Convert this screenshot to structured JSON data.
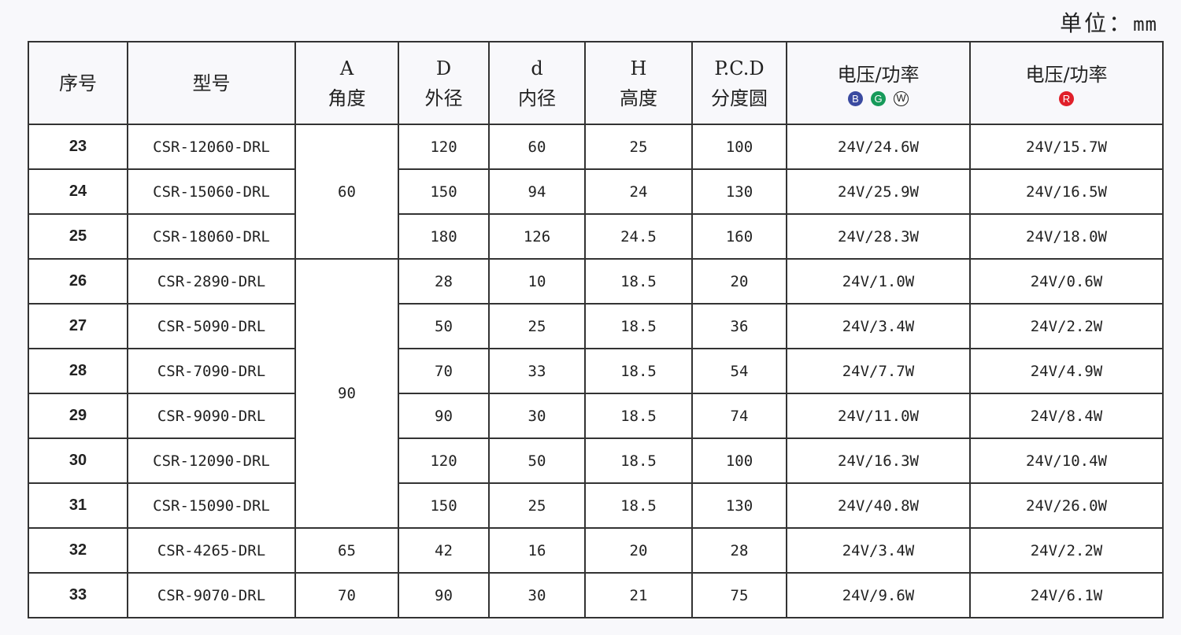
{
  "unit_label": "单位：",
  "unit_value": "mm",
  "headers": {
    "no": "序号",
    "model": "型号",
    "a_sym": "A",
    "a": "角度",
    "d_sym": "D",
    "d": "外径",
    "din_sym": "d",
    "din": "内径",
    "h_sym": "H",
    "h": "高度",
    "pcd_sym": "P.C.D",
    "pcd": "分度圆",
    "power1": "电压/功率",
    "power2": "电压/功率"
  },
  "color_badges_1": [
    {
      "letter": "B",
      "color": "#3a4aa0"
    },
    {
      "letter": "G",
      "color": "#179a5a"
    },
    {
      "letter": "W",
      "color": "#ffffff"
    }
  ],
  "color_badges_2": [
    {
      "letter": "R",
      "color": "#e0202a"
    }
  ],
  "angle_groups": [
    "60",
    "90",
    "65",
    "70"
  ],
  "rows": [
    {
      "no": "23",
      "model": "CSR-12060-DRL",
      "D": "120",
      "d": "60",
      "H": "25",
      "pcd": "100",
      "p1": "24V/24.6W",
      "p2": "24V/15.7W"
    },
    {
      "no": "24",
      "model": "CSR-15060-DRL",
      "D": "150",
      "d": "94",
      "H": "24",
      "pcd": "130",
      "p1": "24V/25.9W",
      "p2": "24V/16.5W"
    },
    {
      "no": "25",
      "model": "CSR-18060-DRL",
      "D": "180",
      "d": "126",
      "H": "24.5",
      "pcd": "160",
      "p1": "24V/28.3W",
      "p2": "24V/18.0W"
    },
    {
      "no": "26",
      "model": "CSR-2890-DRL",
      "D": "28",
      "d": "10",
      "H": "18.5",
      "pcd": "20",
      "p1": "24V/1.0W",
      "p2": "24V/0.6W"
    },
    {
      "no": "27",
      "model": "CSR-5090-DRL",
      "D": "50",
      "d": "25",
      "H": "18.5",
      "pcd": "36",
      "p1": "24V/3.4W",
      "p2": "24V/2.2W"
    },
    {
      "no": "28",
      "model": "CSR-7090-DRL",
      "D": "70",
      "d": "33",
      "H": "18.5",
      "pcd": "54",
      "p1": "24V/7.7W",
      "p2": "24V/4.9W"
    },
    {
      "no": "29",
      "model": "CSR-9090-DRL",
      "D": "90",
      "d": "30",
      "H": "18.5",
      "pcd": "74",
      "p1": "24V/11.0W",
      "p2": "24V/8.4W"
    },
    {
      "no": "30",
      "model": "CSR-12090-DRL",
      "D": "120",
      "d": "50",
      "H": "18.5",
      "pcd": "100",
      "p1": "24V/16.3W",
      "p2": "24V/10.4W"
    },
    {
      "no": "31",
      "model": "CSR-15090-DRL",
      "D": "150",
      "d": "25",
      "H": "18.5",
      "pcd": "130",
      "p1": "24V/40.8W",
      "p2": "24V/26.0W"
    },
    {
      "no": "32",
      "model": "CSR-4265-DRL",
      "D": "42",
      "d": "16",
      "H": "20",
      "pcd": "28",
      "p1": "24V/3.4W",
      "p2": "24V/2.2W"
    },
    {
      "no": "33",
      "model": "CSR-9070-DRL",
      "D": "90",
      "d": "30",
      "H": "21",
      "pcd": "75",
      "p1": "24V/9.6W",
      "p2": "24V/6.1W"
    }
  ]
}
